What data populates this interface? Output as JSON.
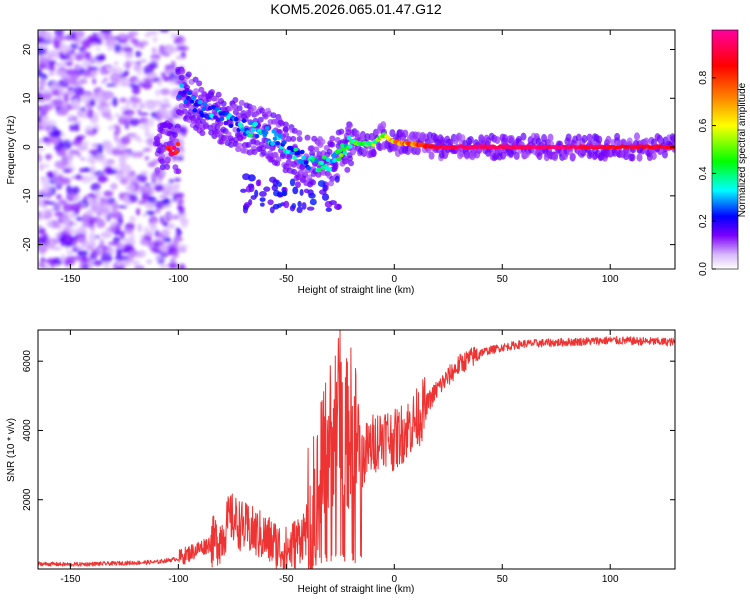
{
  "title": "KOM5.2026.065.01.47.G12",
  "chart_data": [
    {
      "type": "heatmap",
      "title": "KOM5.2026.065.01.47.G12",
      "xlabel": "Height of straight line (km)",
      "ylabel": "Frequency (Hz)",
      "xlim": [
        -165,
        130
      ],
      "ylim": [
        -25,
        24
      ],
      "xticks": [
        -150,
        -100,
        -50,
        0,
        50,
        100
      ],
      "yticks": [
        -20,
        -10,
        0,
        10,
        20
      ],
      "colorbar": {
        "label": "Normalized spectral amplitude",
        "range": [
          0.0,
          1.0
        ],
        "ticks": [
          0.0,
          0.2,
          0.4,
          0.6,
          0.8
        ],
        "tick_labels": [
          "0.0",
          "0.2",
          "0.4",
          "0.6",
          "0.8"
        ],
        "colors": [
          "#ffffff",
          "#7b00ff",
          "#0000ff",
          "#00ffff",
          "#00ff00",
          "#ffff00",
          "#ff8000",
          "#ff0000",
          "#ff00a0"
        ]
      },
      "ridge_points": [
        {
          "x": -100,
          "f": 12,
          "amp": 0.22
        },
        {
          "x": -90,
          "f": 8,
          "amp": 0.25
        },
        {
          "x": -80,
          "f": 6,
          "amp": 0.28
        },
        {
          "x": -70,
          "f": 4,
          "amp": 0.33
        },
        {
          "x": -60,
          "f": 3,
          "amp": 0.38
        },
        {
          "x": -50,
          "f": 0,
          "amp": 0.32
        },
        {
          "x": -40,
          "f": -3,
          "amp": 0.34
        },
        {
          "x": -30,
          "f": -3.5,
          "amp": 0.42
        },
        {
          "x": -20,
          "f": 1,
          "amp": 0.45
        },
        {
          "x": -10,
          "f": 0.5,
          "amp": 0.5
        },
        {
          "x": -5,
          "f": 2.5,
          "amp": 0.55
        },
        {
          "x": 0,
          "f": 1,
          "amp": 0.7
        },
        {
          "x": 10,
          "f": 0.5,
          "amp": 0.8
        },
        {
          "x": 20,
          "f": 0,
          "amp": 0.92
        },
        {
          "x": 40,
          "f": 0,
          "amp": 0.95
        },
        {
          "x": 60,
          "f": 0,
          "amp": 0.95
        },
        {
          "x": 80,
          "f": 0,
          "amp": 0.95
        },
        {
          "x": 100,
          "f": 0,
          "amp": 0.9
        },
        {
          "x": 130,
          "f": 0,
          "amp": 0.9
        }
      ]
    },
    {
      "type": "line",
      "xlabel": "Height of straight line (km)",
      "ylabel": "SNR (10 * v/v)",
      "xlim": [
        -165,
        130
      ],
      "ylim": [
        0,
        6900
      ],
      "xticks": [
        -150,
        -100,
        -50,
        0,
        50,
        100
      ],
      "yticks": [
        2000,
        4000,
        6000
      ],
      "color": "#ee3333",
      "series": [
        {
          "name": "SNR",
          "x": [
            -165,
            -150,
            -130,
            -110,
            -100,
            -90,
            -80,
            -76,
            -70,
            -60,
            -55,
            -50,
            -45,
            -40,
            -36,
            -32,
            -28,
            -25,
            -22,
            -20,
            -17,
            -15,
            -10,
            -5,
            0,
            5,
            10,
            20,
            30,
            40,
            50,
            60,
            80,
            100,
            130
          ],
          "y": [
            150,
            130,
            160,
            200,
            300,
            600,
            900,
            1500,
            1200,
            900,
            700,
            500,
            800,
            1200,
            1800,
            3200,
            4200,
            4800,
            3800,
            4200,
            3500,
            3200,
            3600,
            3900,
            3700,
            4000,
            4300,
            5200,
            5900,
            6250,
            6400,
            6500,
            6550,
            6600,
            6550
          ]
        }
      ]
    }
  ]
}
